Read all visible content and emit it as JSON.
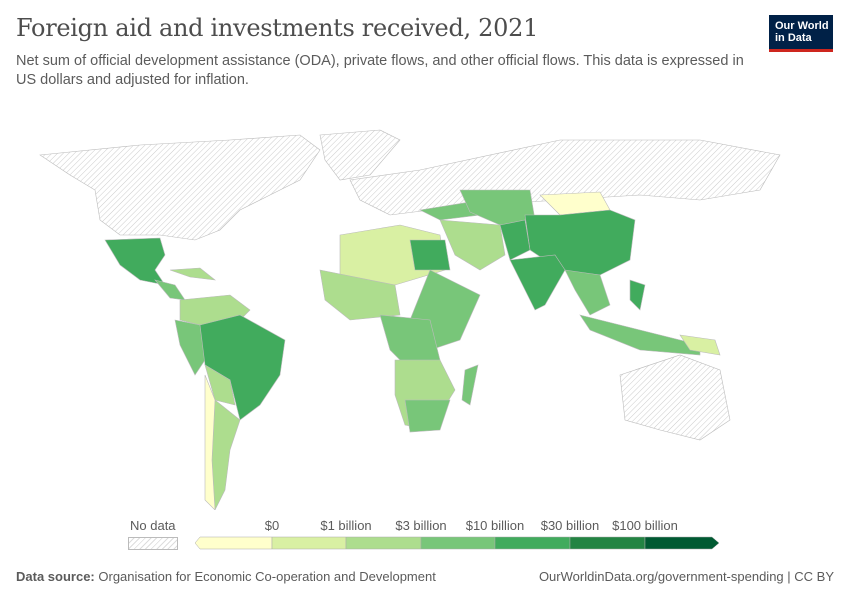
{
  "header": {
    "title": "Foreign aid and investments received, 2021",
    "subtitle": "Net sum of official development assistance (ODA), private flows, and other official flows. This data is expressed in US dollars and adjusted for inflation.",
    "logo_line1": "Our World",
    "logo_line2": "in Data"
  },
  "legend": {
    "no_data": "No data",
    "ticks": [
      "$0",
      "$1 billion",
      "$3 billion",
      "$10 billion",
      "$30 billion",
      "$100 billion"
    ],
    "colors": [
      "#ffffcc",
      "#d9f0a3",
      "#addd8e",
      "#78c679",
      "#41ab5d",
      "#238443",
      "#005a32"
    ],
    "no_data_pattern": "hatched-gray"
  },
  "footer": {
    "source_label": "Data source:",
    "source": "Organisation for Economic Co-operation and Development",
    "url": "OurWorldinData.org/government-spending | CC BY"
  }
}
